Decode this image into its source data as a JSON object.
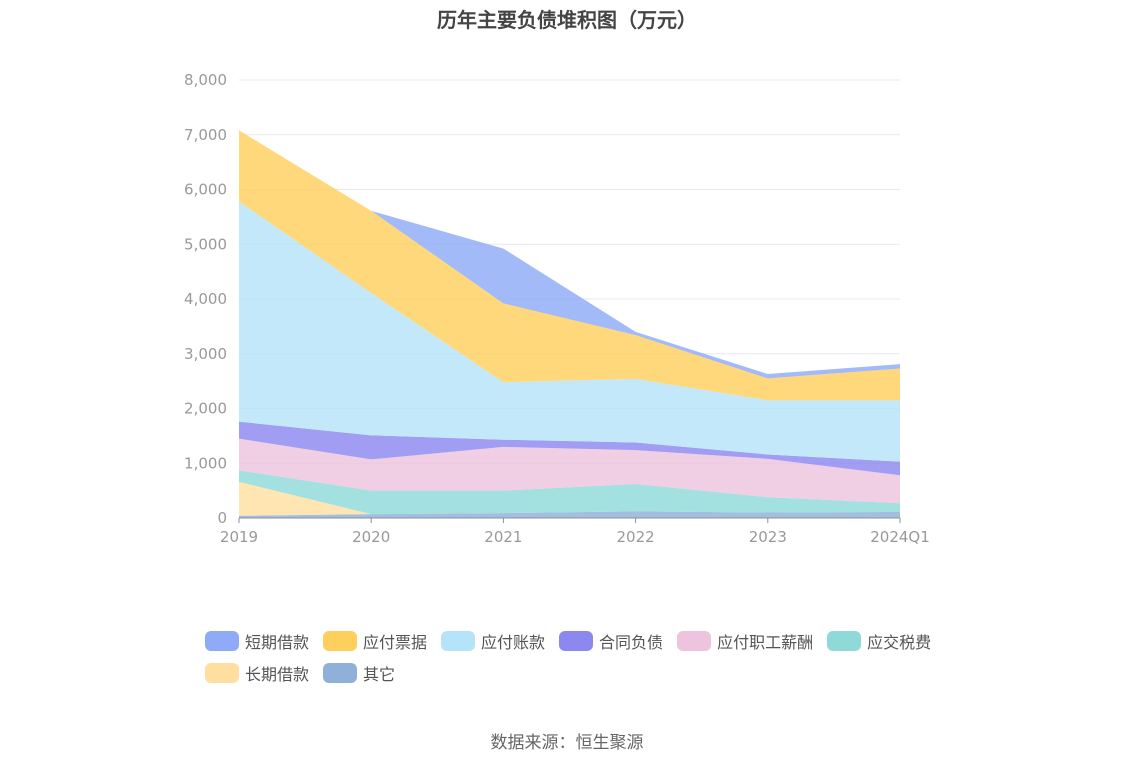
{
  "chart_data": {
    "type": "area",
    "title": "历年主要负债堆积图（万元）",
    "xlabel": "",
    "ylabel": "",
    "categories": [
      "2019",
      "2020",
      "2021",
      "2022",
      "2023",
      "2024Q1"
    ],
    "ylim": [
      0,
      8000
    ],
    "yticks": [
      "0",
      "1,000",
      "2,000",
      "3,000",
      "4,000",
      "5,000",
      "6,000",
      "7,000",
      "8,000"
    ],
    "stacked": true,
    "grid": true,
    "legend_position": "bottom",
    "series": [
      {
        "name": "其它",
        "color": "#8fb0d8",
        "values": [
          40,
          70,
          90,
          120,
          100,
          110
        ]
      },
      {
        "name": "长期借款",
        "color": "#ffdfa0",
        "values": [
          620,
          0,
          0,
          0,
          0,
          0
        ]
      },
      {
        "name": "应交税费",
        "color": "#8fd9d9",
        "values": [
          210,
          430,
          410,
          500,
          280,
          160
        ]
      },
      {
        "name": "应付职工薪酬",
        "color": "#edc3dd",
        "values": [
          580,
          570,
          800,
          620,
          700,
          510
        ]
      },
      {
        "name": "合同负债",
        "color": "#8c88f0",
        "values": [
          310,
          440,
          130,
          140,
          80,
          250
        ]
      },
      {
        "name": "应付账款",
        "color": "#b5e3f8",
        "values": [
          4020,
          2600,
          1050,
          1160,
          990,
          1120
        ]
      },
      {
        "name": "应付票据",
        "color": "#ffcf5e",
        "values": [
          1300,
          1500,
          1440,
          800,
          400,
          580
        ]
      },
      {
        "name": "短期借款",
        "color": "#8fabf7",
        "values": [
          0,
          0,
          1000,
          60,
          80,
          80
        ]
      }
    ]
  },
  "legend_order": [
    "短期借款",
    "应付票据",
    "应付账款",
    "合同负债",
    "应付职工薪酬",
    "应交税费",
    "长期借款",
    "其它"
  ],
  "source": "数据来源：恒生聚源"
}
